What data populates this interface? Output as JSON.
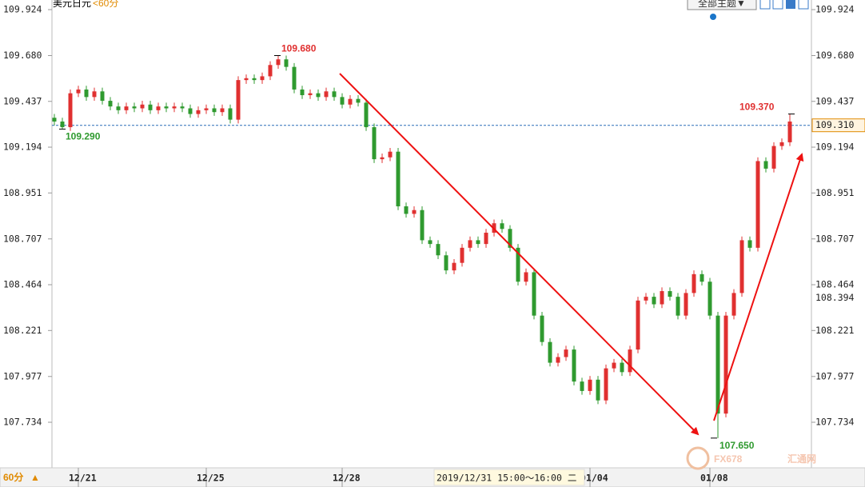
{
  "chart_data": {
    "type": "candlestick",
    "title": "美元日元",
    "period": "<60分",
    "theme_button": "全部主题▼",
    "period_button": "60分",
    "crosshair_label": "2019/12/31 15:00～16:00 二",
    "watermark": {
      "brand": "FX678",
      "name": "汇通网"
    },
    "up_color": "#e03030",
    "down_color": "#2f9a2f",
    "categories": [
      null,
      null,
      null,
      "12/21",
      null,
      null,
      null,
      null,
      null,
      null,
      null,
      null,
      null,
      null,
      null,
      null,
      null,
      null,
      null,
      "12/25",
      null,
      null,
      null,
      null,
      null,
      null,
      null,
      null,
      null,
      null,
      null,
      null,
      null,
      null,
      null,
      null,
      "12/28",
      null,
      null,
      null,
      null,
      null,
      null,
      null,
      null,
      null,
      null,
      null,
      null,
      null,
      null,
      null,
      null,
      null,
      null,
      null,
      null,
      null,
      null,
      null,
      null,
      null,
      null,
      null,
      null,
      null,
      null,
      "01/04",
      null,
      null,
      null,
      null,
      null,
      null,
      null,
      null,
      null,
      null,
      null,
      null,
      null,
      null,
      "01/08",
      null,
      null,
      null,
      null,
      null,
      null,
      null,
      null,
      null,
      null
    ],
    "open": [
      109.35,
      109.33,
      109.3,
      109.48,
      109.5,
      109.46,
      109.49,
      109.44,
      109.41,
      109.39,
      109.41,
      109.4,
      109.42,
      109.39,
      109.41,
      109.4,
      109.41,
      109.4,
      109.37,
      109.39,
      109.4,
      109.38,
      109.4,
      109.34,
      109.55,
      109.56,
      109.55,
      109.57,
      109.63,
      109.66,
      109.62,
      109.5,
      109.47,
      109.48,
      109.46,
      109.49,
      109.46,
      109.42,
      109.45,
      109.43,
      109.3,
      109.13,
      109.14,
      109.17,
      108.88,
      108.84,
      108.86,
      108.7,
      108.68,
      108.62,
      108.54,
      108.58,
      108.66,
      108.7,
      108.68,
      108.74,
      108.79,
      108.76,
      108.66,
      108.48,
      108.53,
      108.3,
      108.16,
      108.05,
      108.08,
      108.12,
      107.95,
      107.9,
      107.96,
      107.85,
      108.02,
      108.05,
      108.0,
      108.12,
      108.38,
      108.4,
      108.36,
      108.43,
      108.4,
      108.3,
      108.42,
      108.52,
      108.48,
      108.3,
      107.78,
      108.3,
      108.42,
      108.7,
      108.66,
      109.12,
      109.08,
      109.2,
      109.22
    ],
    "high": [
      109.37,
      109.35,
      109.5,
      109.52,
      109.52,
      109.51,
      109.51,
      109.46,
      109.43,
      109.43,
      109.43,
      109.44,
      109.44,
      109.43,
      109.43,
      109.43,
      109.43,
      109.42,
      109.41,
      109.42,
      109.42,
      109.42,
      109.42,
      109.57,
      109.58,
      109.58,
      109.59,
      109.65,
      109.68,
      109.68,
      109.64,
      109.52,
      109.5,
      109.5,
      109.51,
      109.51,
      109.48,
      109.47,
      109.47,
      109.45,
      109.32,
      109.16,
      109.19,
      109.19,
      108.9,
      108.88,
      108.88,
      108.72,
      108.7,
      108.64,
      108.6,
      108.68,
      108.72,
      108.72,
      108.76,
      108.81,
      108.81,
      108.78,
      108.68,
      108.55,
      108.55,
      108.32,
      108.18,
      108.1,
      108.14,
      108.14,
      107.97,
      107.98,
      107.98,
      108.04,
      108.07,
      108.07,
      108.14,
      108.4,
      108.42,
      108.42,
      108.45,
      108.45,
      108.42,
      108.44,
      108.54,
      108.54,
      108.5,
      108.32,
      108.32,
      108.44,
      108.72,
      108.72,
      109.14,
      109.14,
      109.22,
      109.24,
      109.37
    ],
    "low": [
      109.31,
      109.29,
      109.28,
      109.46,
      109.44,
      109.44,
      109.42,
      109.39,
      109.37,
      109.37,
      109.38,
      109.38,
      109.37,
      109.37,
      109.38,
      109.38,
      109.38,
      109.35,
      109.35,
      109.37,
      109.36,
      109.36,
      109.32,
      109.32,
      109.53,
      109.53,
      109.53,
      109.55,
      109.61,
      109.6,
      109.48,
      109.45,
      109.45,
      109.44,
      109.44,
      109.44,
      109.4,
      109.4,
      109.41,
      109.28,
      109.11,
      109.11,
      109.12,
      108.86,
      108.82,
      108.82,
      108.68,
      108.66,
      108.6,
      108.52,
      108.52,
      108.56,
      108.64,
      108.66,
      108.66,
      108.72,
      108.74,
      108.64,
      108.46,
      108.46,
      108.28,
      108.14,
      108.03,
      108.03,
      108.06,
      107.93,
      107.88,
      107.88,
      107.83,
      107.83,
      108.0,
      107.98,
      107.98,
      108.1,
      108.36,
      108.34,
      108.34,
      108.38,
      108.28,
      108.28,
      108.4,
      108.46,
      108.28,
      107.65,
      107.76,
      108.28,
      108.4,
      108.64,
      108.64,
      109.06,
      109.06,
      109.18,
      109.2
    ],
    "close": [
      109.33,
      109.3,
      109.48,
      109.5,
      109.46,
      109.49,
      109.44,
      109.41,
      109.39,
      109.41,
      109.4,
      109.42,
      109.39,
      109.41,
      109.4,
      109.41,
      109.4,
      109.37,
      109.39,
      109.4,
      109.38,
      109.4,
      109.34,
      109.55,
      109.56,
      109.55,
      109.57,
      109.63,
      109.66,
      109.62,
      109.5,
      109.47,
      109.48,
      109.46,
      109.49,
      109.46,
      109.42,
      109.45,
      109.43,
      109.3,
      109.13,
      109.14,
      109.17,
      108.88,
      108.84,
      108.86,
      108.7,
      108.68,
      108.62,
      108.54,
      108.58,
      108.66,
      108.7,
      108.68,
      108.74,
      108.79,
      108.76,
      108.66,
      108.48,
      108.53,
      108.3,
      108.16,
      108.05,
      108.08,
      108.12,
      107.95,
      107.9,
      107.96,
      107.85,
      108.02,
      108.05,
      108.0,
      108.12,
      108.38,
      108.4,
      108.36,
      108.43,
      108.4,
      108.3,
      108.42,
      108.52,
      108.48,
      108.3,
      107.78,
      108.3,
      108.42,
      108.7,
      108.66,
      109.12,
      109.08,
      109.2,
      109.22,
      109.33
    ],
    "ylim": [
      107.471,
      109.975
    ],
    "yticks": [
      {
        "value": 109.924,
        "label": "109.924"
      },
      {
        "value": 109.68,
        "label": "109.680"
      },
      {
        "value": 109.437,
        "label": "109.437"
      },
      {
        "value": 109.194,
        "label": "109.194"
      },
      {
        "value": 108.951,
        "label": "108.951"
      },
      {
        "value": 108.707,
        "label": "108.707"
      },
      {
        "value": 108.464,
        "label": "108.464"
      },
      {
        "value": 108.221,
        "label": "108.221"
      },
      {
        "value": 107.977,
        "label": "107.977"
      },
      {
        "value": 107.734,
        "label": "107.734"
      }
    ],
    "extremes": [
      {
        "value": 109.68,
        "label": "109.680",
        "kind": "high"
      },
      {
        "value": 109.29,
        "label": "109.290",
        "kind": "low"
      },
      {
        "value": 109.37,
        "label": "109.370",
        "kind": "high"
      },
      {
        "value": 107.65,
        "label": "107.650",
        "kind": "low"
      }
    ],
    "price_tags": [
      {
        "value": 109.31,
        "label": "109.310"
      },
      {
        "value": 108.394,
        "label": "108.394"
      }
    ]
  }
}
